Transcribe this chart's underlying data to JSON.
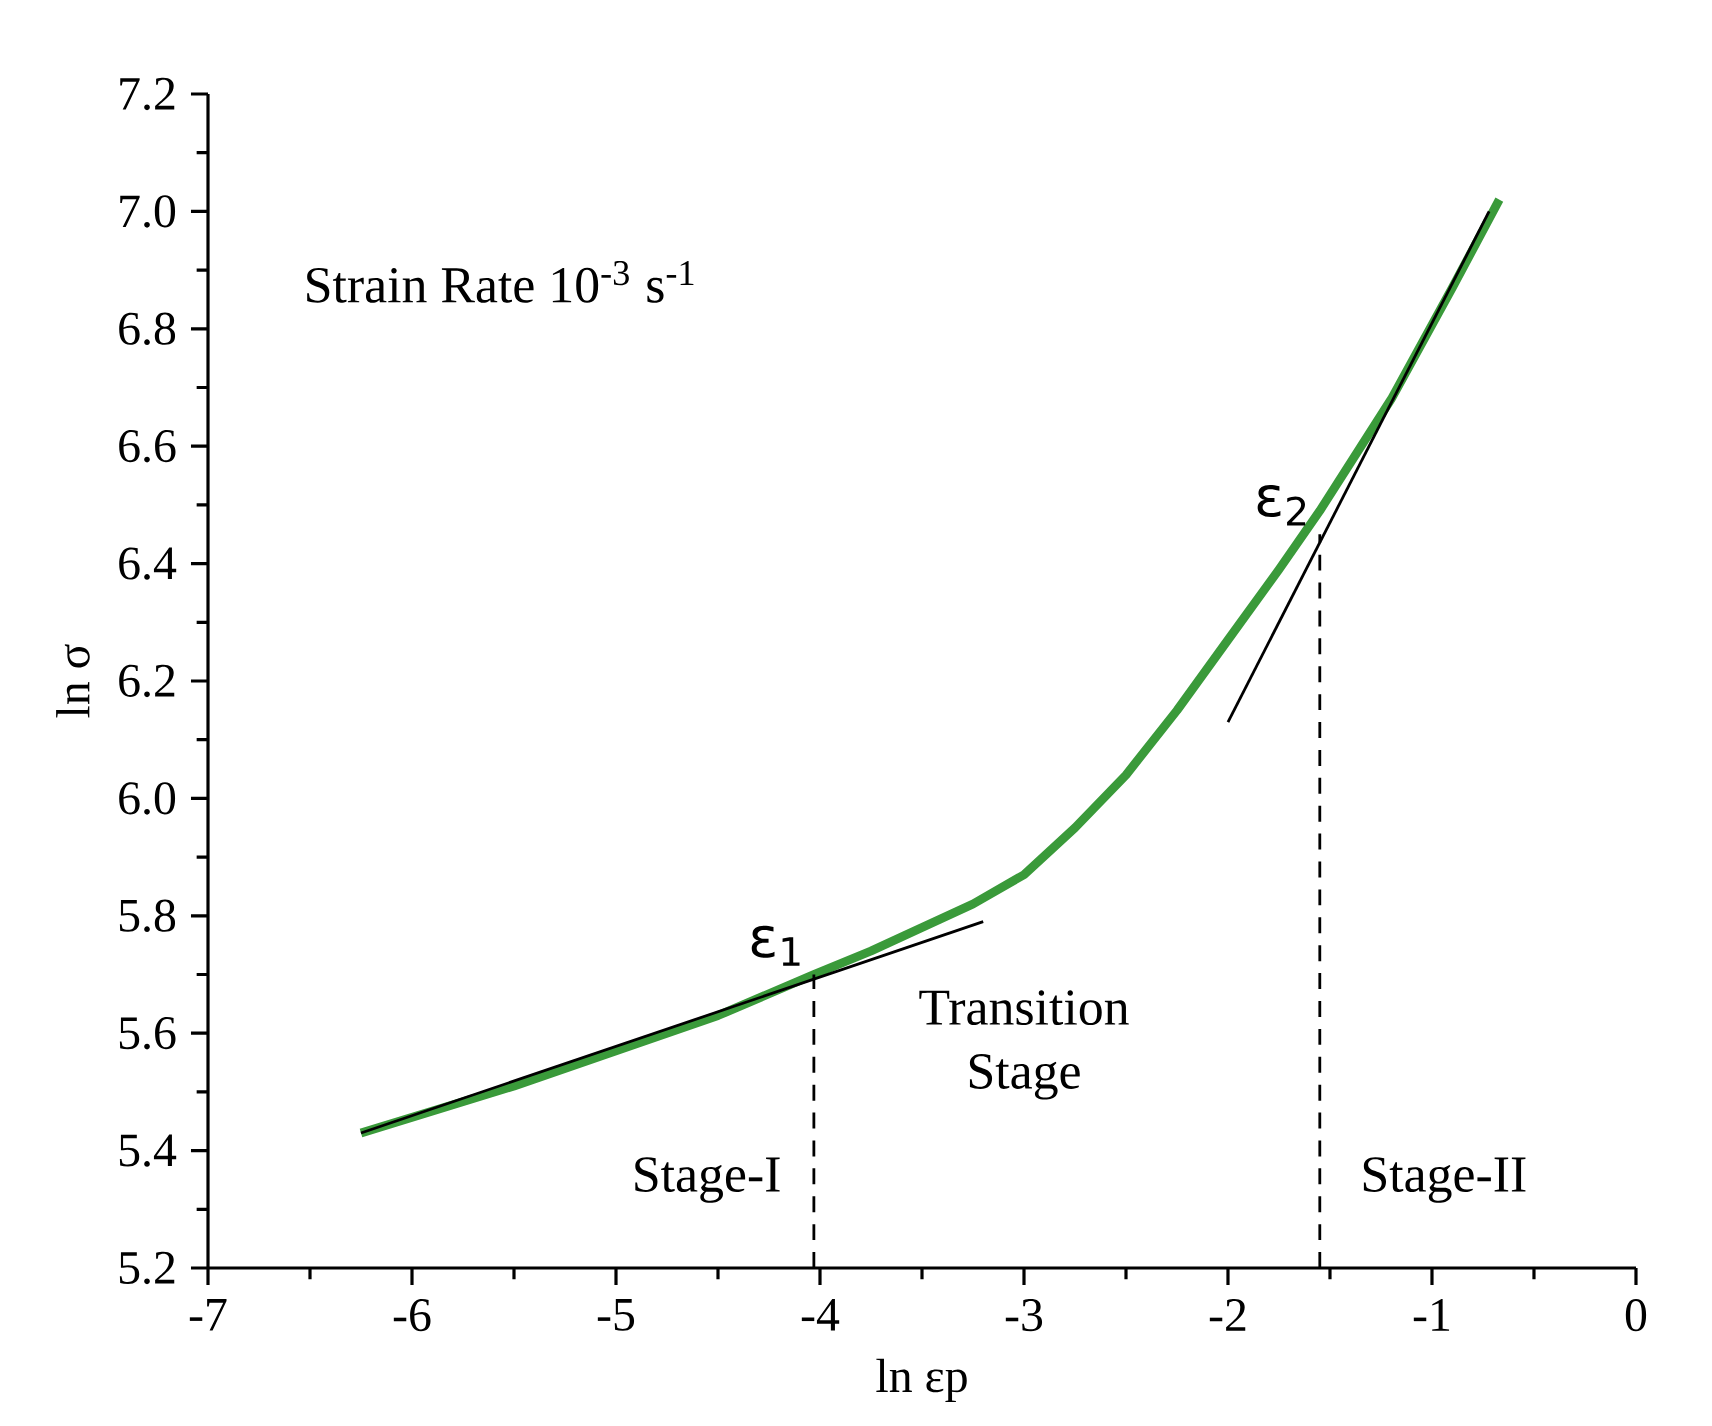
{
  "chart_data": {
    "type": "line",
    "xlabel": "ln  εp",
    "ylabel": "ln σ",
    "xlim": [
      -7,
      0
    ],
    "xticks": [
      -7,
      -6,
      -5,
      -4,
      -3,
      -2,
      -1,
      0
    ],
    "ylim": [
      5.2,
      7.2
    ],
    "yticks": [
      5.2,
      5.4,
      5.6,
      5.8,
      {
        "value": 6.0,
        "label": "6.0"
      },
      6.2,
      6.4,
      6.6,
      6.8,
      {
        "value": 7.0,
        "label": "7.0"
      },
      7.2
    ],
    "grid": false,
    "marker": "none",
    "series": [
      {
        "color": "#3a9a3a",
        "x": [
          -6.25,
          -5.5,
          -5.0,
          -4.5,
          -4.03,
          -3.75,
          -3.5,
          -3.25,
          -3.0,
          -2.75,
          -2.5,
          -2.25,
          -2.0,
          -1.75,
          -1.55,
          -1.2,
          -0.9,
          -0.67
        ],
        "values": [
          5.43,
          5.51,
          5.57,
          5.63,
          5.7,
          5.74,
          5.78,
          5.82,
          5.87,
          5.95,
          6.04,
          6.15,
          6.27,
          6.39,
          6.49,
          6.68,
          6.87,
          7.02
        ],
        "line_style": "solid"
      },
      {
        "color": "#000000",
        "x": [
          -6.25,
          -3.2
        ],
        "values": [
          5.43,
          5.79
        ],
        "line_style": "solid"
      },
      {
        "color": "#000000",
        "x": [
          -2.0,
          -0.72
        ],
        "values": [
          6.13,
          7.0
        ],
        "line_style": "solid"
      },
      {
        "color": "#000000",
        "x": [
          -4.03,
          -4.03
        ],
        "values": [
          5.2,
          5.7
        ],
        "line_style": "dashed"
      },
      {
        "color": "#000000",
        "x": [
          -1.55,
          -1.55
        ],
        "values": [
          5.2,
          6.45
        ],
        "line_style": "dashed"
      }
    ],
    "annotations": [
      "Strain Rate 10$^{-3}$ s$^{-1}$",
      "Transition Stage",
      "Stage-I",
      "Stage-II",
      {
        "text": "ε$_{1}$",
        "x": -4.03,
        "y": 5.7
      },
      {
        "text": "ε$_{2}$",
        "x": -1.55,
        "y": 6.45
      }
    ]
  }
}
